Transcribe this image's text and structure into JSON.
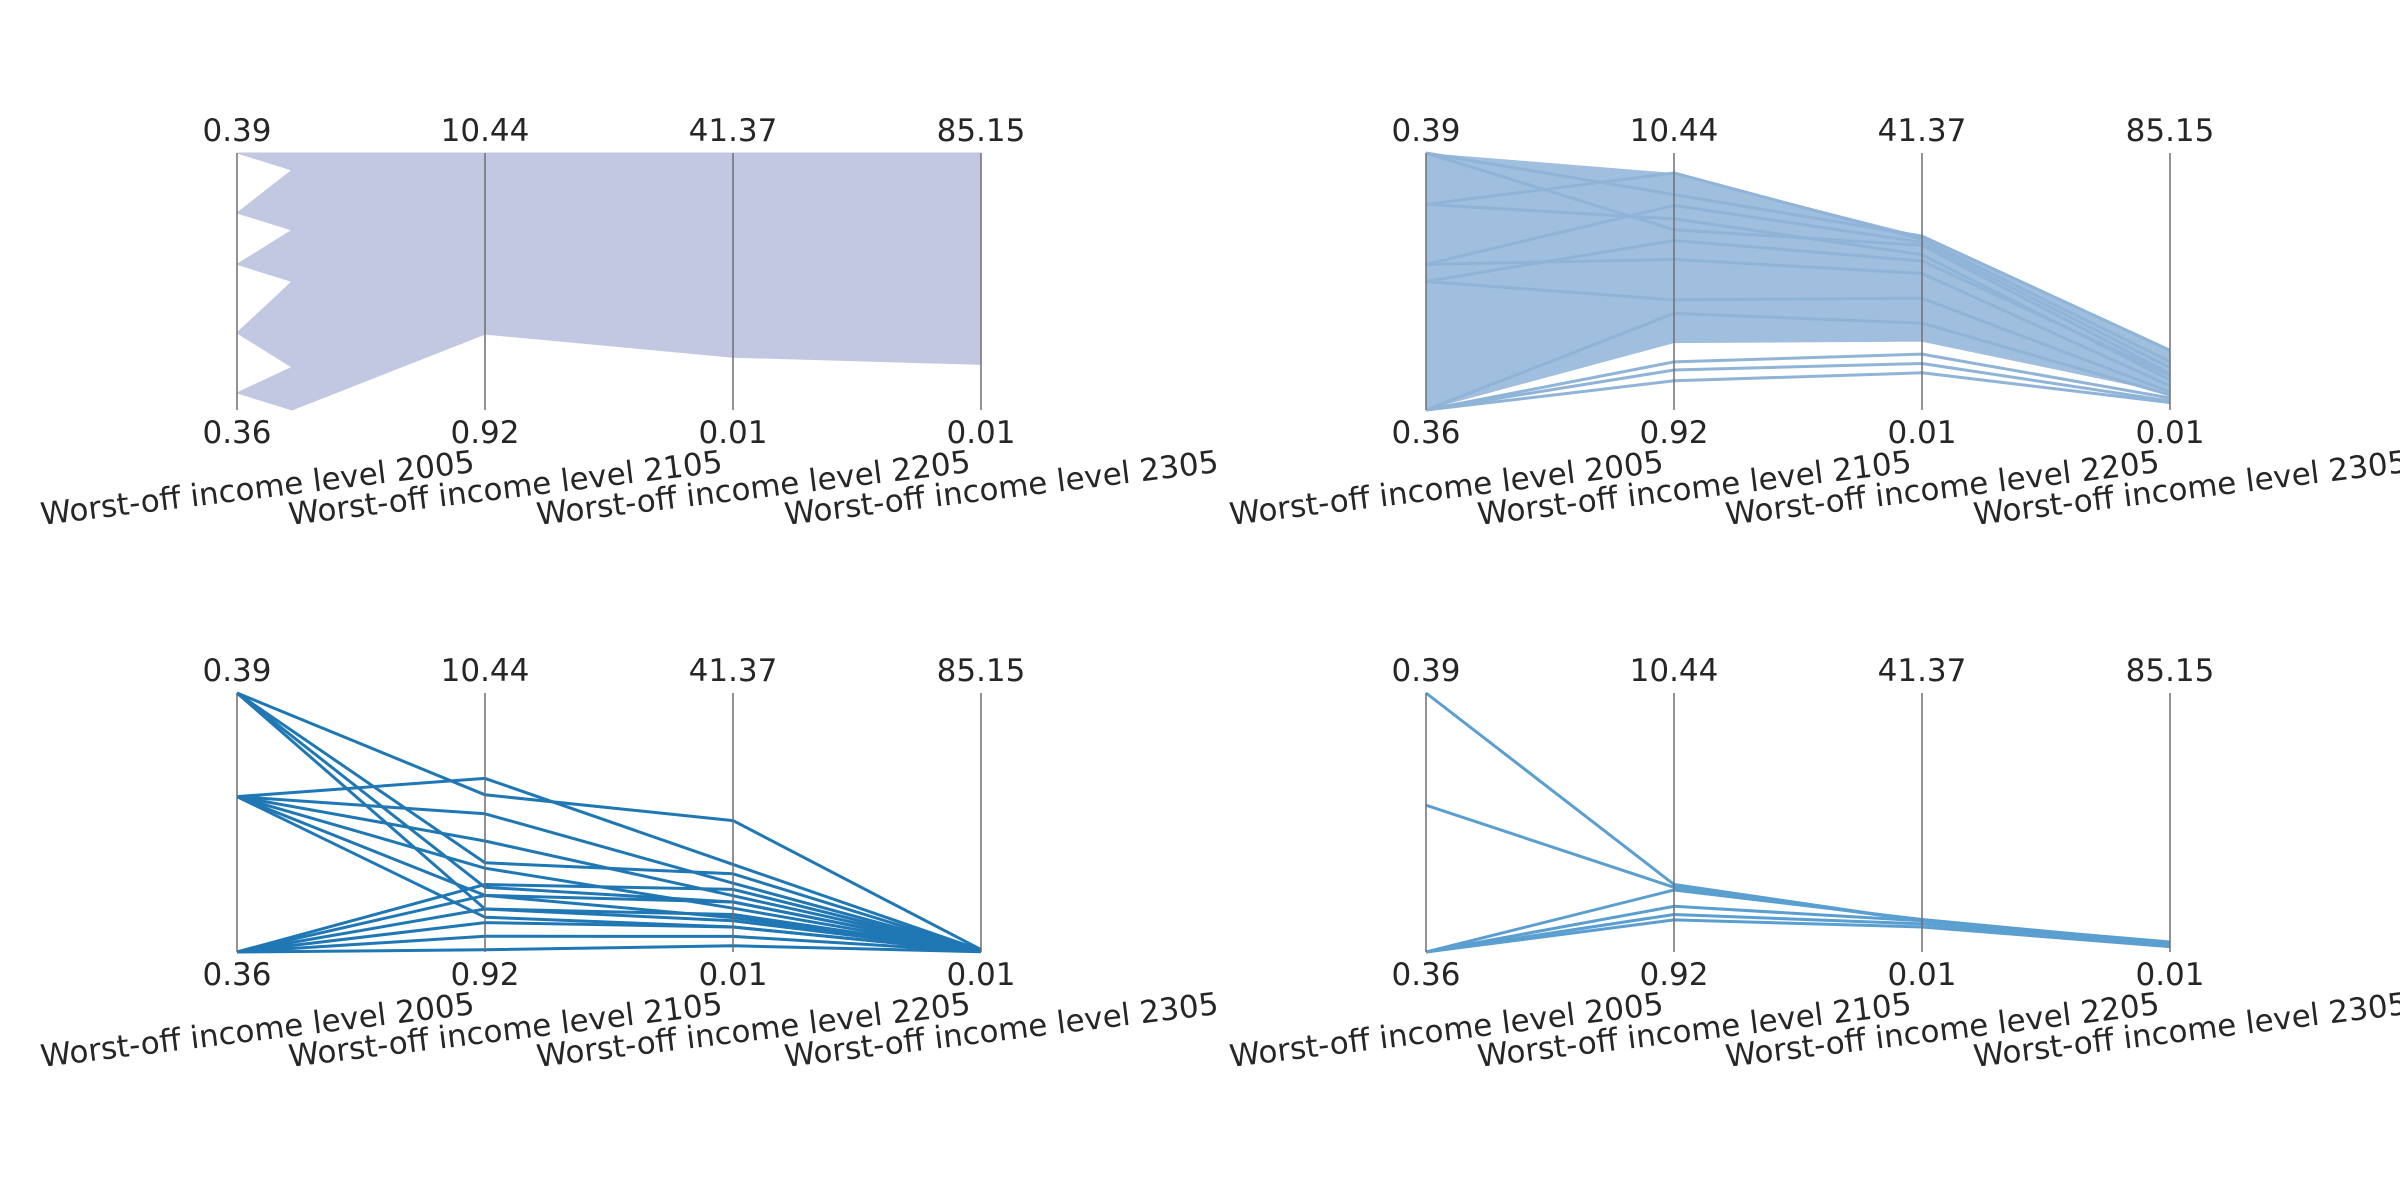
{
  "chart_data": [
    {
      "type": "parallel-coordinates",
      "render": "band",
      "color": "#c3c8e2",
      "axes": [
        {
          "label": "Worst-off income level 2005",
          "min": 0.36,
          "max": 0.39,
          "min_label": "0.36",
          "max_label": "0.39"
        },
        {
          "label": "Worst-off income level 2105",
          "min": 0.92,
          "max": 10.44,
          "min_label": "0.92",
          "max_label": "10.44"
        },
        {
          "label": "Worst-off income level 2205",
          "min": 0.01,
          "max": 41.37,
          "min_label": "0.01",
          "max_label": "41.37"
        },
        {
          "label": "Worst-off income level 2305",
          "min": 0.01,
          "max": 85.15,
          "min_label": "0.01",
          "max_label": "85.15"
        }
      ],
      "axis0_profile": [
        0.39,
        0.388,
        0.383,
        0.381,
        0.377,
        0.375,
        0.369,
        0.365,
        0.362,
        0.36
      ],
      "upper": [
        0.39,
        10.44,
        41.37,
        85.15
      ],
      "lower": [
        0.36,
        3.73,
        8.5,
        15.1
      ]
    },
    {
      "type": "parallel-coordinates",
      "color": "#8fb4d8",
      "axes": [
        {
          "label": "Worst-off income level 2005",
          "min": 0.36,
          "max": 0.39,
          "min_label": "0.36",
          "max_label": "0.39"
        },
        {
          "label": "Worst-off income level 2105",
          "min": 0.92,
          "max": 10.44,
          "min_label": "0.92",
          "max_label": "10.44"
        },
        {
          "label": "Worst-off income level 2205",
          "min": 0.01,
          "max": 41.37,
          "min_label": "0.01",
          "max_label": "41.37"
        },
        {
          "label": "Worst-off income level 2305",
          "min": 0.01,
          "max": 85.15,
          "min_label": "0.01",
          "max_label": "85.15"
        }
      ],
      "lines": [
        [
          0.39,
          8.9,
          28.0,
          19.8
        ],
        [
          0.39,
          7.6,
          26.5,
          12.0
        ],
        [
          0.384,
          9.7,
          27.5,
          16.0
        ],
        [
          0.384,
          8.0,
          25.0,
          10.0
        ],
        [
          0.377,
          8.5,
          27.0,
          14.0
        ],
        [
          0.377,
          6.5,
          22.0,
          8.0
        ],
        [
          0.375,
          7.2,
          24.0,
          11.5
        ],
        [
          0.375,
          5.0,
          18.0,
          6.0
        ],
        [
          0.36,
          4.5,
          14.0,
          5.0
        ],
        [
          0.36,
          2.7,
          9.0,
          4.0
        ],
        [
          0.36,
          2.4,
          7.5,
          3.0
        ],
        [
          0.36,
          2.0,
          6.0,
          2.5
        ]
      ],
      "band": {
        "upper": [
          0.39,
          9.7,
          28.0,
          20.0
        ],
        "lower": [
          0.36,
          3.4,
          11.0,
          5.5
        ]
      }
    },
    {
      "type": "parallel-coordinates",
      "color": "#1f77b4",
      "axes": [
        {
          "label": "Worst-off income level 2005",
          "min": 0.36,
          "max": 0.39,
          "min_label": "0.36",
          "max_label": "0.39"
        },
        {
          "label": "Worst-off income level 2105",
          "min": 0.92,
          "max": 10.44,
          "min_label": "0.92",
          "max_label": "10.44"
        },
        {
          "label": "Worst-off income level 2205",
          "min": 0.01,
          "max": 41.37,
          "min_label": "0.01",
          "max_label": "41.37"
        },
        {
          "label": "Worst-off income level 2305",
          "min": 0.01,
          "max": 85.15,
          "min_label": "0.01",
          "max_label": "85.15"
        }
      ],
      "lines": [
        [
          0.39,
          6.7,
          21.0,
          0.8
        ],
        [
          0.39,
          4.2,
          12.5,
          0.5
        ],
        [
          0.39,
          3.3,
          8.0,
          0.4
        ],
        [
          0.39,
          2.5,
          5.0,
          0.3
        ],
        [
          0.378,
          7.3,
          14.0,
          0.6
        ],
        [
          0.378,
          6.0,
          11.0,
          0.5
        ],
        [
          0.378,
          5.0,
          9.0,
          0.4
        ],
        [
          0.378,
          4.0,
          7.0,
          0.3
        ],
        [
          0.378,
          3.0,
          5.5,
          0.3
        ],
        [
          0.378,
          2.2,
          4.0,
          0.2
        ],
        [
          0.36,
          3.4,
          10.0,
          0.4
        ],
        [
          0.36,
          3.0,
          8.0,
          0.3
        ],
        [
          0.36,
          2.5,
          6.0,
          0.3
        ],
        [
          0.36,
          2.0,
          4.0,
          0.2
        ],
        [
          0.36,
          1.5,
          2.5,
          0.2
        ],
        [
          0.36,
          1.0,
          1.0,
          0.1
        ]
      ]
    },
    {
      "type": "parallel-coordinates",
      "color": "#5a9fd0",
      "axes": [
        {
          "label": "Worst-off income level 2005",
          "min": 0.36,
          "max": 0.39,
          "min_label": "0.36",
          "max_label": "0.39"
        },
        {
          "label": "Worst-off income level 2105",
          "min": 0.92,
          "max": 10.44,
          "min_label": "0.92",
          "max_label": "10.44"
        },
        {
          "label": "Worst-off income level 2205",
          "min": 0.01,
          "max": 41.37,
          "min_label": "0.01",
          "max_label": "41.37"
        },
        {
          "label": "Worst-off income level 2305",
          "min": 0.01,
          "max": 85.15,
          "min_label": "0.01",
          "max_label": "85.15"
        }
      ],
      "lines": [
        [
          0.39,
          3.4,
          5.0,
          3.3
        ],
        [
          0.377,
          3.3,
          5.0,
          3.1
        ],
        [
          0.36,
          3.2,
          5.2,
          3.0
        ],
        [
          0.36,
          2.6,
          5.0,
          2.5
        ],
        [
          0.36,
          2.3,
          4.5,
          2.0
        ],
        [
          0.36,
          2.1,
          4.0,
          1.8
        ]
      ]
    }
  ]
}
